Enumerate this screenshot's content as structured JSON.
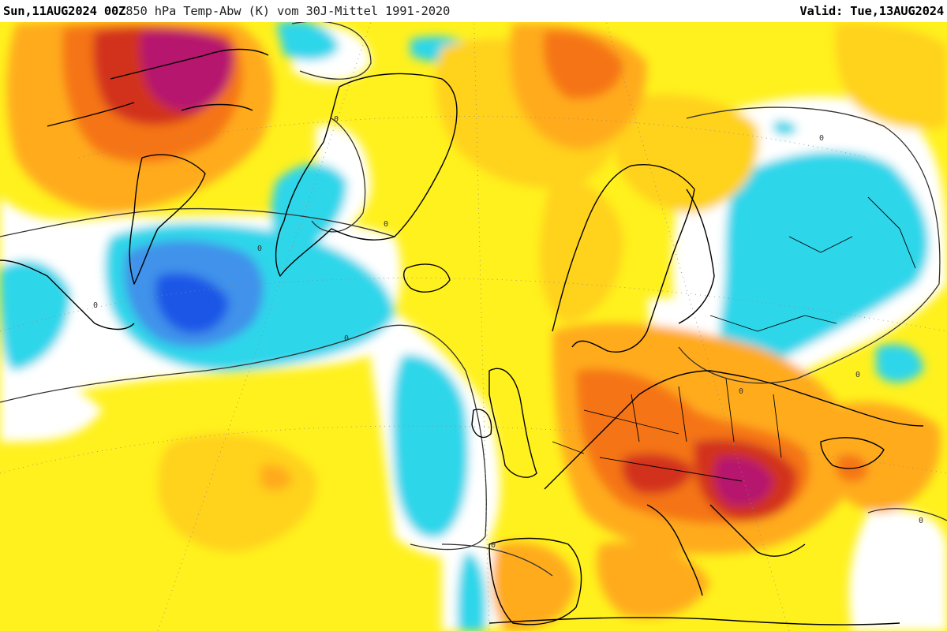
{
  "header": {
    "run": "Sun,11AUG2024 00Z",
    "description": " 850 hPa Temp-Abw (K) vom 30J-Mittel 1991-2020",
    "valid_label": "Valid:",
    "valid_date": "Tue,13AUG2024"
  },
  "map": {
    "parameter": "850 hPa temperature anomaly",
    "unit": "K",
    "zero_contour_label": "0",
    "colors": {
      "strong_cold": "#1f57e6",
      "cold": "#3f92ea",
      "cool": "#2fd6ea",
      "neutral": "#ffffff",
      "warm": "#fff11e",
      "warmer": "#ffd21e",
      "hot": "#ffab1e",
      "very_hot": "#f57417",
      "extreme": "#d2321e",
      "extreme_peak": "#b6146e",
      "coastline": "#000000",
      "contour": "#333333"
    },
    "regions": [
      "Canada/Baffin",
      "Greenland",
      "Iceland",
      "Scandinavia",
      "Western Russia",
      "Central Europe",
      "Balkans",
      "Iberia",
      "North Atlantic"
    ]
  }
}
